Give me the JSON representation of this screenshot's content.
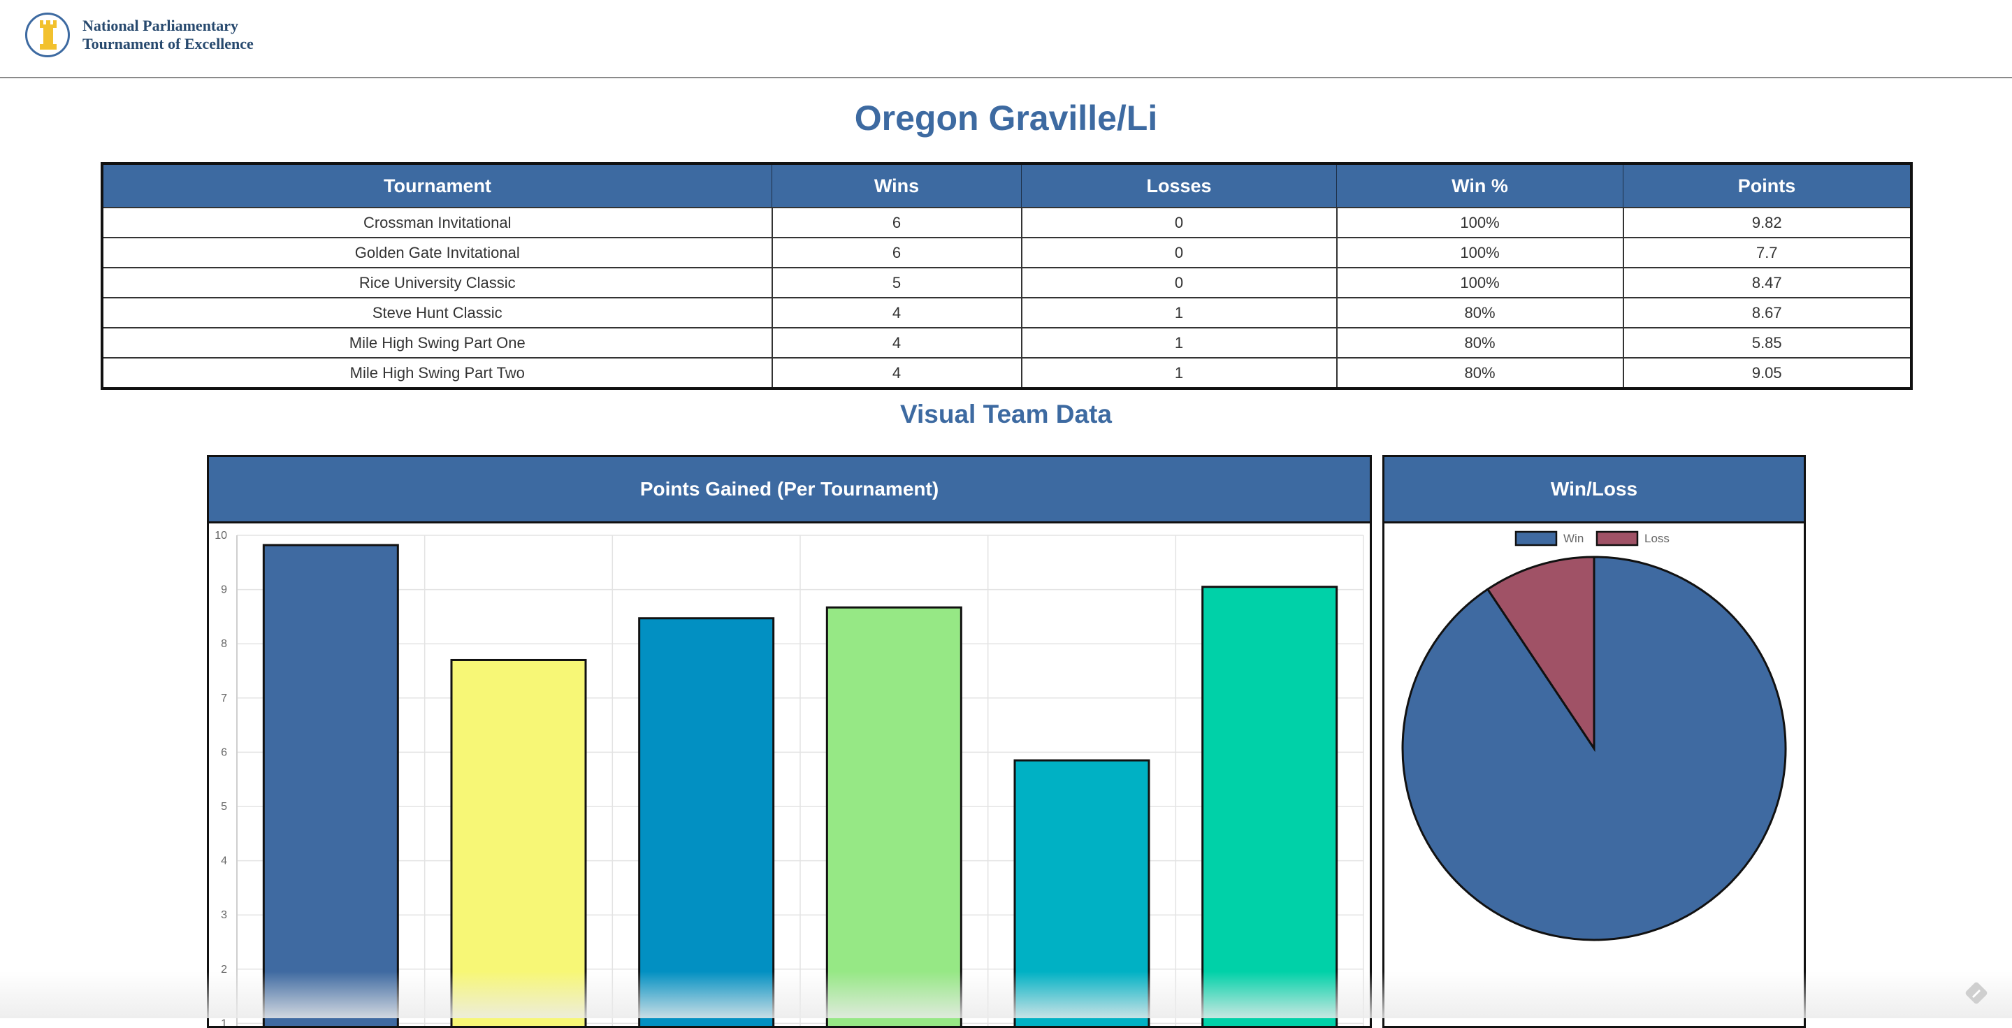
{
  "site": {
    "name_line1": "National Parliamentary",
    "name_line2": "Tournament of Excellence",
    "logo_icon": "rook-tower-icon"
  },
  "team": {
    "name": "Oregon Graville/Li"
  },
  "results_table": {
    "headers": [
      "Tournament",
      "Wins",
      "Losses",
      "Win %",
      "Points"
    ],
    "rows": [
      [
        "Crossman Invitational",
        "6",
        "0",
        "100%",
        "9.82"
      ],
      [
        "Golden Gate Invitational",
        "6",
        "0",
        "100%",
        "7.7"
      ],
      [
        "Rice University Classic",
        "5",
        "0",
        "100%",
        "8.47"
      ],
      [
        "Steve Hunt Classic",
        "4",
        "1",
        "80%",
        "8.67"
      ],
      [
        "Mile High Swing Part One",
        "4",
        "1",
        "80%",
        "5.85"
      ],
      [
        "Mile High Swing Part Two",
        "4",
        "1",
        "80%",
        "9.05"
      ]
    ]
  },
  "visual_section": {
    "title": "Visual Team Data"
  },
  "chart_data": [
    {
      "type": "bar",
      "title": "Points Gained (Per Tournament)",
      "categories": [
        "Crossman Invitational",
        "Golden Gate Invitational",
        "Rice University Classic",
        "Steve Hunt Classic",
        "Mile High Swing Part One",
        "Mile High Swing Part Two"
      ],
      "values": [
        9.82,
        7.7,
        8.47,
        8.67,
        5.85,
        9.05
      ],
      "colors": [
        "#3f6aa1",
        "#f7f776",
        "#0290c2",
        "#96e885",
        "#00b1c4",
        "#00d1a8"
      ],
      "ylim": [
        0,
        10
      ],
      "yticks": [
        "1",
        "2",
        "3",
        "4",
        "5",
        "6",
        "7",
        "8",
        "9",
        "10"
      ],
      "grid": true
    },
    {
      "type": "pie",
      "title": "Win/Loss",
      "labels": [
        "Win",
        "Loss"
      ],
      "values": [
        29,
        3
      ],
      "colors": [
        "#3f6aa1",
        "#a05266"
      ],
      "legend": "top"
    }
  ],
  "corner": {
    "icon": "edit-pencil-icon"
  }
}
